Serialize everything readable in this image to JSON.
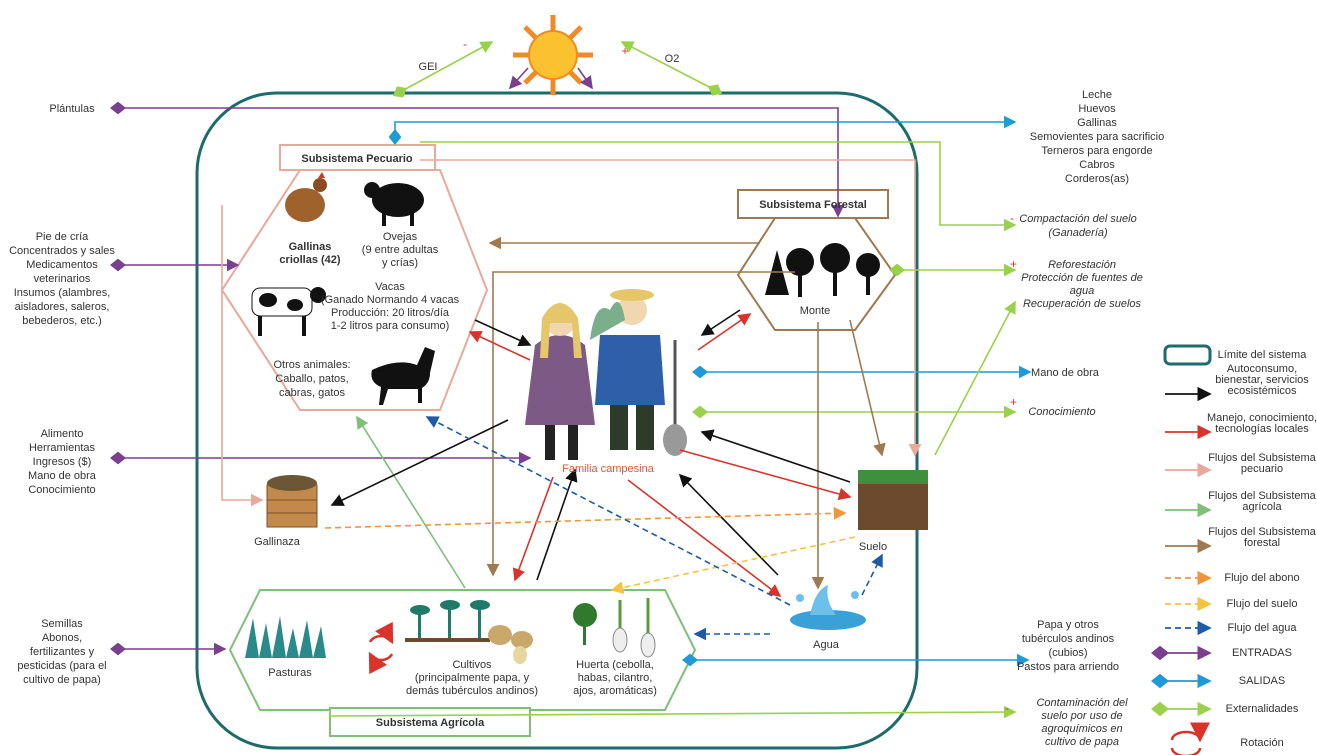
{
  "subsystems": {
    "pecuario": "Subsistema Pecuario",
    "forestal": "Subsistema Forestal",
    "agricola": "Subsistema Agrícola"
  },
  "sun": {
    "gei": "GEI",
    "gei_sign": "-",
    "o2": "O2",
    "o2_sign": "+"
  },
  "inputs": {
    "plantulas": "Plántulas",
    "pecuario": [
      "Pie de cría",
      "Concentrados y sales",
      "Medicamentos",
      "veterinarios",
      "Insumos (alambres,",
      "aisladores, saleros,",
      "bebederos, etc.)"
    ],
    "familia": [
      "Alimento",
      "Herramientas",
      "Ingresos ($)",
      "Mano de obra",
      "Conocimiento"
    ],
    "agricola": [
      "Semillas",
      "Abonos,",
      "fertilizantes y",
      "pesticidas (para el",
      "cultivo de papa)"
    ]
  },
  "outputs": {
    "pecuario": [
      "Leche",
      "Huevos",
      "Gallinas",
      "Semovientes para sacrificio",
      "Terneros para engorde",
      "Cabros",
      "Corderos(as)"
    ],
    "mano_obra": "Mano de obra",
    "agricola": [
      "Papa y otros",
      "tubérculos andinos",
      "(cubios)",
      "Pastos para arriendo"
    ]
  },
  "externalities": {
    "compactacion": {
      "sign": "-",
      "lines": [
        "Compactación del suelo",
        "(Ganadería)"
      ]
    },
    "reforestacion": {
      "sign": "+",
      "lines": [
        "Reforestación",
        "Protección de fuentes de",
        "agua",
        "Recuperación de suelos"
      ]
    },
    "conocimiento": {
      "sign": "+",
      "lines": [
        "Conocimiento"
      ]
    },
    "contaminacion": {
      "sign": "-",
      "lines": [
        "Contaminación del",
        "suelo por uso de",
        "agroquímicos en",
        "cultivo de papa"
      ]
    }
  },
  "pecuario": {
    "gallinas": [
      "Gallinas",
      "criollas (42)"
    ],
    "ovejas": [
      "Ovejas",
      "(9 entre adultas",
      "y crías)"
    ],
    "vacas": [
      "Vacas",
      "(Ganado Normando 4 vacas",
      "Producción: 20 litros/día",
      "1-2 litros para consumo)"
    ],
    "otros": [
      "Otros animales:",
      "Caballo, patos,",
      "cabras, gatos"
    ]
  },
  "nodes": {
    "monte": "Monte",
    "familia": "Familia campesina",
    "gallinaza": "Gallinaza",
    "suelo": "Suelo",
    "agua": "Agua"
  },
  "agricola": {
    "pasturas": "Pasturas",
    "cultivos": [
      "Cultivos",
      "(principalmente papa, y",
      "demás tubérculos andinos)"
    ],
    "huerta": [
      "Huerta (cebolla,",
      "habas, cilantro,",
      "ajos,  aromáticas)"
    ]
  },
  "legend": [
    [
      "Límite del sistema"
    ],
    [
      "Autoconsumo,",
      "bienestar, servicios",
      "ecosistémicos"
    ],
    [
      "Manejo, conocimiento,",
      "tecnologías locales"
    ],
    [
      "Flujos del Subsistema",
      "pecuario"
    ],
    [
      "Flujos del Subsistema",
      "agrícola"
    ],
    [
      "Flujos del Subsistema",
      "forestal"
    ],
    [
      "Flujo del abono"
    ],
    [
      "Flujo del suelo"
    ],
    [
      "Flujo del agua"
    ],
    [
      "ENTRADAS"
    ],
    [
      "SALIDAS"
    ],
    [
      "Externalidades"
    ],
    [
      "Rotación"
    ]
  ]
}
